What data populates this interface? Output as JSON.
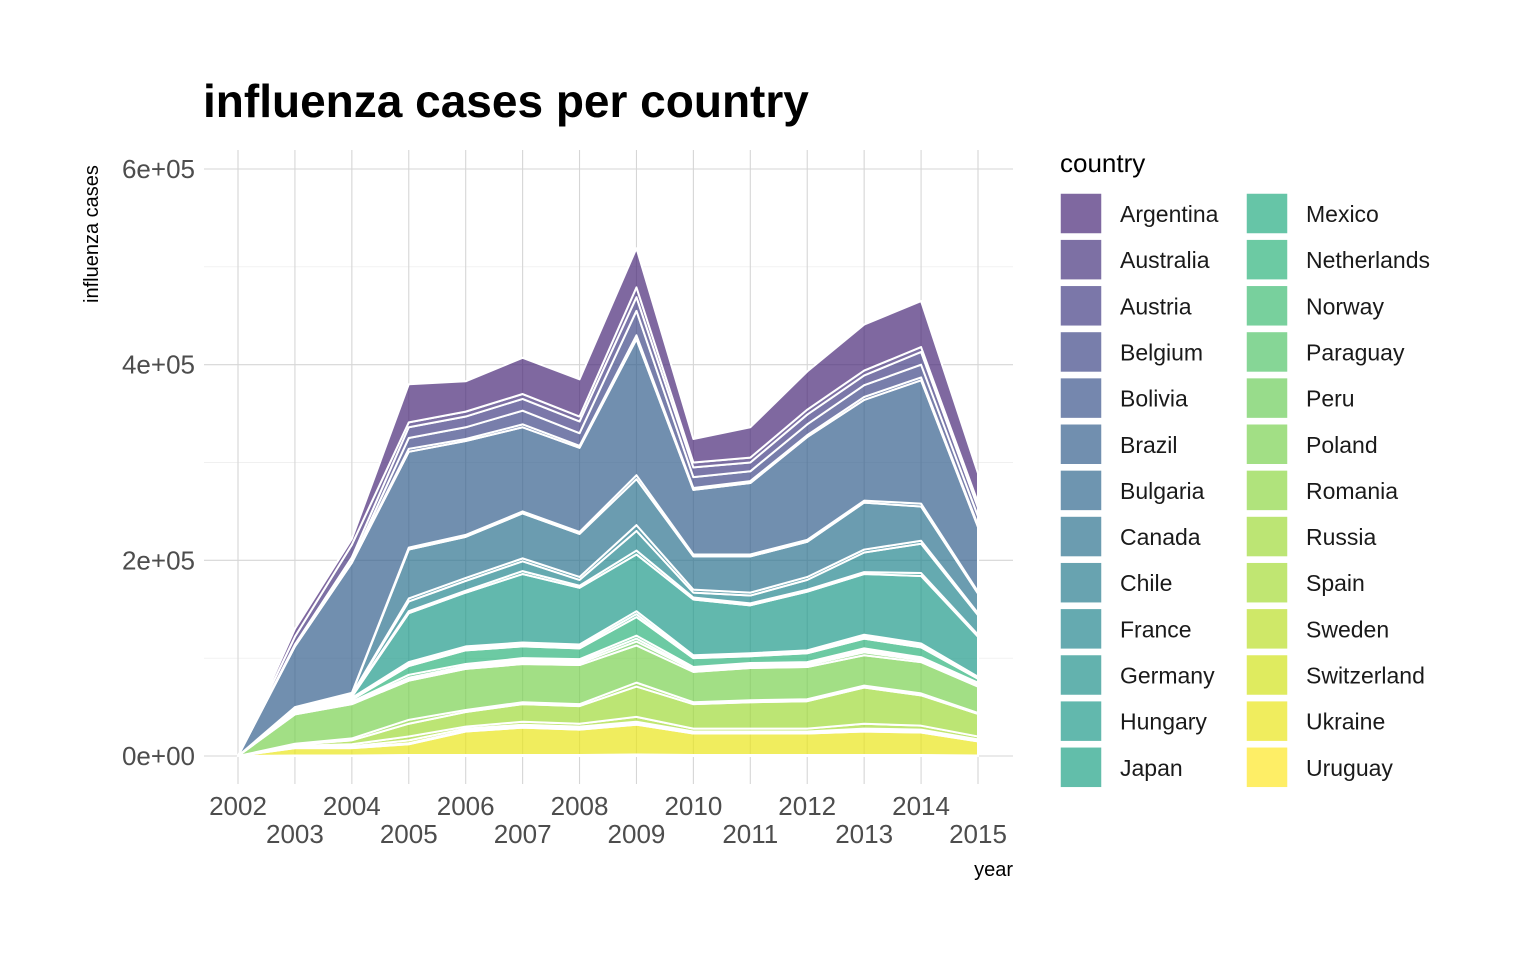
{
  "chart_data": {
    "type": "area",
    "stacked": true,
    "title": "influenza cases per country",
    "xlabel": "year",
    "ylabel": "influenza cases",
    "xlim": [
      2002,
      2015
    ],
    "ylim": [
      0,
      600000
    ],
    "x_ticks": [
      {
        "value": 2002,
        "label": "2002",
        "row": 0
      },
      {
        "value": 2003,
        "label": "2003",
        "row": 1
      },
      {
        "value": 2004,
        "label": "2004",
        "row": 0
      },
      {
        "value": 2005,
        "label": "2005",
        "row": 1
      },
      {
        "value": 2006,
        "label": "2006",
        "row": 0
      },
      {
        "value": 2007,
        "label": "2007",
        "row": 1
      },
      {
        "value": 2008,
        "label": "2008",
        "row": 0
      },
      {
        "value": 2009,
        "label": "2009",
        "row": 1
      },
      {
        "value": 2010,
        "label": "2010",
        "row": 0
      },
      {
        "value": 2011,
        "label": "2011",
        "row": 1
      },
      {
        "value": 2012,
        "label": "2012",
        "row": 0
      },
      {
        "value": 2013,
        "label": "2013",
        "row": 1
      },
      {
        "value": 2014,
        "label": "2014",
        "row": 0
      },
      {
        "value": 2015,
        "label": "2015",
        "row": 1
      }
    ],
    "y_ticks": [
      {
        "value": 0,
        "label": "0e+00"
      },
      {
        "value": 200000,
        "label": "2e+05"
      },
      {
        "value": 400000,
        "label": "4e+05"
      },
      {
        "value": 600000,
        "label": "6e+05"
      }
    ],
    "grid": true,
    "legend_title": "country",
    "legend_position": "right",
    "x": [
      2002,
      2003,
      2004,
      2005,
      2006,
      2007,
      2008,
      2009,
      2010,
      2011,
      2012,
      2013,
      2014,
      2015
    ],
    "series": [
      {
        "name": "Uruguay",
        "color": "#FDE725",
        "values": [
          0,
          500,
          500,
          1000,
          1000,
          1000,
          1000,
          1500,
          1000,
          1000,
          1000,
          1000,
          1000,
          500
        ]
      },
      {
        "name": "Ukraine",
        "color": "#EAE51A",
        "values": [
          0,
          7500,
          7500,
          11000,
          24000,
          28000,
          26000,
          30500,
          22000,
          22000,
          22000,
          24000,
          23000,
          14500
        ]
      },
      {
        "name": "Switzerland",
        "color": "#D2E21B",
        "values": [
          0,
          500,
          1000,
          1000,
          1000,
          1000,
          1000,
          1000,
          1000,
          1000,
          1000,
          1000,
          1000,
          1000
        ]
      },
      {
        "name": "Sweden",
        "color": "#BADE28",
        "values": [
          0,
          1000,
          1000,
          3000,
          2000,
          2000,
          2000,
          2000,
          1000,
          1000,
          1000,
          2000,
          2000,
          1000
        ]
      },
      {
        "name": "Spain",
        "color": "#A5DB36",
        "values": [
          0,
          1000,
          2000,
          4000,
          2000,
          3000,
          3000,
          5000,
          3000,
          3000,
          3000,
          5000,
          4000,
          3000
        ]
      },
      {
        "name": "Russia",
        "color": "#A0DA39",
        "values": [
          0,
          1000,
          4000,
          13000,
          15000,
          18000,
          18000,
          31000,
          25000,
          27000,
          28000,
          37000,
          31000,
          23000
        ]
      },
      {
        "name": "Romania",
        "color": "#8FD744",
        "values": [
          0,
          1000,
          2000,
          4000,
          2000,
          2000,
          2000,
          4000,
          2000,
          2000,
          2000,
          2000,
          2000,
          1000
        ]
      },
      {
        "name": "Poland",
        "color": "#7AD151",
        "values": [
          0,
          30000,
          35000,
          40000,
          42000,
          39000,
          40000,
          38000,
          31000,
          33000,
          33000,
          31000,
          32000,
          27000
        ]
      },
      {
        "name": "Peru",
        "color": "#6CCD5A",
        "values": [
          0,
          1000,
          1000,
          2000,
          2000,
          2000,
          2000,
          4000,
          2000,
          2000,
          2000,
          3000,
          2000,
          2000
        ]
      },
      {
        "name": "Paraguay",
        "color": "#52C569",
        "values": [
          0,
          500,
          500,
          1000,
          1000,
          2000,
          2000,
          3000,
          1000,
          1000,
          1000,
          2000,
          1000,
          1000
        ]
      },
      {
        "name": "Norway",
        "color": "#3FBC73",
        "values": [
          0,
          500,
          1000,
          3000,
          2000,
          2000,
          2000,
          3000,
          2000,
          2000,
          2000,
          2000,
          2000,
          1000
        ]
      },
      {
        "name": "Netherlands",
        "color": "#2EB37C",
        "values": [
          0,
          1000,
          2000,
          9000,
          14000,
          12000,
          11000,
          19000,
          9000,
          7000,
          9000,
          10000,
          10000,
          4000
        ]
      },
      {
        "name": "Mexico",
        "color": "#25AC82",
        "values": [
          0,
          500,
          1000,
          2000,
          2000,
          2000,
          2000,
          3000,
          1000,
          1000,
          1000,
          2000,
          2000,
          1000
        ]
      },
      {
        "name": "Japan",
        "color": "#20A386",
        "values": [
          0,
          1000,
          1000,
          2000,
          2000,
          2000,
          2000,
          3000,
          2000,
          2000,
          2000,
          2000,
          2000,
          1000
        ]
      },
      {
        "name": "Hungary",
        "color": "#1F9A8A",
        "values": [
          0,
          500,
          1000,
          50000,
          55000,
          70000,
          58000,
          58000,
          57000,
          49000,
          60000,
          62000,
          69000,
          41000
        ]
      },
      {
        "name": "Germany",
        "color": "#21918C",
        "values": [
          0,
          500,
          1000,
          2000,
          2000,
          3000,
          2000,
          4000,
          2000,
          2000,
          2000,
          2000,
          3000,
          2000
        ]
      },
      {
        "name": "France",
        "color": "#24868E",
        "values": [
          0,
          500,
          1000,
          10000,
          10000,
          10000,
          6000,
          20000,
          5000,
          8000,
          10000,
          20000,
          30000,
          20000
        ]
      },
      {
        "name": "Chile",
        "color": "#287C8E",
        "values": [
          0,
          500,
          500,
          3000,
          3000,
          3000,
          3000,
          6000,
          3000,
          3000,
          3000,
          3000,
          3000,
          2000
        ]
      },
      {
        "name": "Canada",
        "color": "#2C728E",
        "values": [
          0,
          500,
          1000,
          50000,
          42000,
          46000,
          44000,
          47000,
          34000,
          37000,
          36000,
          48000,
          35000,
          20000
        ]
      },
      {
        "name": "Bulgaria",
        "color": "#31688E",
        "values": [
          0,
          500,
          500,
          2000,
          2000,
          2000,
          2000,
          4000,
          2000,
          2000,
          2000,
          2000,
          3000,
          2000
        ]
      },
      {
        "name": "Brazil",
        "color": "#355F8D",
        "values": [
          0,
          62000,
          133000,
          98000,
          96000,
          86000,
          86000,
          139000,
          66000,
          73000,
          105000,
          103000,
          126000,
          66000
        ]
      },
      {
        "name": "Bolivia",
        "color": "#3A548C",
        "values": [
          0,
          500,
          500,
          3000,
          2000,
          3000,
          2000,
          4000,
          2000,
          2000,
          2000,
          3000,
          3000,
          2000
        ]
      },
      {
        "name": "Belgium",
        "color": "#3F4788",
        "values": [
          0,
          500,
          1000,
          11000,
          12000,
          14000,
          13000,
          25000,
          11000,
          10000,
          11000,
          12000,
          13000,
          9000
        ]
      },
      {
        "name": "Austria",
        "color": "#433D84",
        "values": [
          0,
          1000,
          4000,
          11000,
          11000,
          12000,
          12000,
          14000,
          10000,
          9000,
          10000,
          10000,
          13000,
          9000
        ]
      },
      {
        "name": "Australia",
        "color": "#46337E",
        "values": [
          0,
          8000,
          13000,
          5000,
          5000,
          5000,
          5000,
          10000,
          5000,
          5000,
          5000,
          5000,
          5000,
          5000
        ]
      },
      {
        "name": "Argentina",
        "color": "#482878",
        "values": [
          0,
          8000,
          6000,
          39000,
          31000,
          37000,
          38000,
          40000,
          24000,
          31000,
          39000,
          47000,
          47000,
          30000
        ]
      }
    ]
  }
}
